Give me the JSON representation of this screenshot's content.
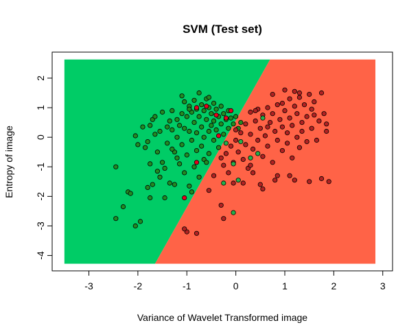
{
  "chart_data": {
    "type": "scatter",
    "title": "SVM (Test set)",
    "xlabel": "Variance of Wavelet Transformed image",
    "ylabel": "Entropy of image",
    "xlim": [
      -3.75,
      3.2
    ],
    "ylim": [
      -4.52,
      2.88
    ],
    "xticks": [
      "-3",
      "-2",
      "-1",
      "0",
      "1",
      "2",
      "3"
    ],
    "yticks": [
      "-4",
      "-3",
      "-2",
      "-1",
      "0",
      "1",
      "2"
    ],
    "grid": false,
    "legend": "none",
    "decision_regions": {
      "x_range": [
        -3.5,
        2.85
      ],
      "y_range": [
        -4.28,
        2.63
      ],
      "boundary": [
        [
          -1.65,
          -4.28
        ],
        [
          0.7,
          2.63
        ]
      ],
      "left_region_color": "#00CC66",
      "right_region_color": "#FF6347"
    },
    "point_colors": {
      "class_0": "#228B22",
      "class_1": "#B22222",
      "misclassified_class_0": "#22B14C",
      "misclassified_class_1": "#E8001C"
    },
    "series": [
      {
        "color": "#228B22",
        "points": [
          [
            -2.45,
            -1.0
          ],
          [
            -2.45,
            -2.75
          ],
          [
            -2.3,
            -2.35
          ],
          [
            -2.2,
            -1.85
          ],
          [
            -2.15,
            -1.9
          ],
          [
            -2.05,
            -3.0
          ],
          [
            -1.95,
            -2.85
          ],
          [
            -2.05,
            0.05
          ],
          [
            -1.9,
            0.35
          ],
          [
            -1.85,
            -0.35
          ],
          [
            -1.8,
            -0.15
          ],
          [
            -1.8,
            -1.7
          ],
          [
            -1.75,
            -2.05
          ],
          [
            -1.7,
            -1.6
          ],
          [
            -1.75,
            0.4
          ],
          [
            -1.7,
            0.6
          ],
          [
            -1.65,
            0.1
          ],
          [
            -1.6,
            -0.5
          ],
          [
            -1.6,
            -1.15
          ],
          [
            -1.55,
            0.2
          ],
          [
            -1.5,
            0.85
          ],
          [
            -1.5,
            -0.85
          ],
          [
            -1.45,
            -1.05
          ],
          [
            -1.45,
            -2.05
          ],
          [
            -1.4,
            0.35
          ],
          [
            -1.4,
            -0.2
          ],
          [
            -1.35,
            0.55
          ],
          [
            -1.35,
            -1.55
          ],
          [
            -1.3,
            0.9
          ],
          [
            -1.3,
            0.25
          ],
          [
            -1.25,
            -0.5
          ],
          [
            -1.25,
            -1.6
          ],
          [
            -1.2,
            0.6
          ],
          [
            -1.2,
            0.0
          ],
          [
            -1.15,
            -0.9
          ],
          [
            -1.15,
            0.4
          ],
          [
            -1.1,
            0.8
          ],
          [
            -1.1,
            -0.25
          ],
          [
            -1.05,
            1.2
          ],
          [
            -1.05,
            0.3
          ],
          [
            -1.05,
            -1.2
          ],
          [
            -1.0,
            0.7
          ],
          [
            -1.0,
            -0.6
          ],
          [
            -0.95,
            1.05
          ],
          [
            -0.95,
            0.2
          ],
          [
            -0.95,
            -1.65
          ],
          [
            -0.9,
            0.85
          ],
          [
            -0.9,
            -0.1
          ],
          [
            -0.85,
            1.25
          ],
          [
            -0.85,
            0.5
          ],
          [
            -0.85,
            -1.0
          ],
          [
            -0.8,
            0.95
          ],
          [
            -0.8,
            0.15
          ],
          [
            -0.8,
            -0.45
          ],
          [
            -0.75,
            1.5
          ],
          [
            -0.75,
            0.7
          ],
          [
            -0.75,
            -1.35
          ],
          [
            -0.7,
            1.1
          ],
          [
            -0.7,
            0.35
          ],
          [
            -0.7,
            -0.3
          ],
          [
            -0.65,
            0.9
          ],
          [
            -0.65,
            0.0
          ],
          [
            -0.65,
            -0.75
          ],
          [
            -0.6,
            1.3
          ],
          [
            -0.6,
            0.6
          ],
          [
            -0.55,
            1.0
          ],
          [
            -0.55,
            0.2
          ],
          [
            -0.55,
            -0.55
          ],
          [
            -0.5,
            0.8
          ],
          [
            -0.5,
            0.4
          ],
          [
            -0.45,
            1.15
          ],
          [
            -0.45,
            0.55
          ],
          [
            -0.45,
            -0.1
          ],
          [
            -0.4,
            0.95
          ],
          [
            -0.4,
            0.25
          ],
          [
            -0.35,
            0.7
          ],
          [
            -0.35,
            -0.35
          ],
          [
            -0.3,
            1.05
          ],
          [
            -0.3,
            0.45
          ],
          [
            -0.25,
            0.8
          ],
          [
            -0.25,
            0.1
          ],
          [
            -0.2,
            0.6
          ],
          [
            -0.15,
            0.9
          ],
          [
            -0.15,
            0.3
          ],
          [
            -0.1,
            0.65
          ],
          [
            -0.05,
            0.45
          ],
          [
            0.0,
            0.7
          ],
          [
            0.05,
            0.3
          ],
          [
            0.1,
            0.5
          ],
          [
            -1.2,
            -0.7
          ],
          [
            -1.55,
            -1.35
          ],
          [
            -1.75,
            -0.9
          ],
          [
            -2.0,
            -0.25
          ],
          [
            -0.9,
            -1.85
          ],
          [
            -0.6,
            -0.85
          ],
          [
            -1.3,
            -0.4
          ],
          [
            -1.65,
            0.7
          ],
          [
            -0.95,
            0.95
          ],
          [
            -0.55,
            1.35
          ],
          [
            -1.1,
            1.4
          ]
        ]
      },
      {
        "color": "#B22222",
        "points": [
          [
            -1.0,
            -3.2
          ],
          [
            -1.05,
            -3.1
          ],
          [
            -0.8,
            -3.25
          ],
          [
            -0.55,
            -1.8
          ],
          [
            -0.45,
            -1.3
          ],
          [
            -0.3,
            -2.3
          ],
          [
            -0.25,
            -2.75
          ],
          [
            -0.3,
            -0.7
          ],
          [
            -0.25,
            -0.95
          ],
          [
            -0.2,
            -0.55
          ],
          [
            -0.15,
            -1.2
          ],
          [
            -0.1,
            -0.3
          ],
          [
            -0.05,
            -0.85
          ],
          [
            0.0,
            -0.1
          ],
          [
            0.05,
            -0.5
          ],
          [
            0.1,
            0.15
          ],
          [
            0.15,
            -0.75
          ],
          [
            0.2,
            -0.25
          ],
          [
            0.2,
            0.45
          ],
          [
            0.25,
            -1.05
          ],
          [
            0.3,
            0.1
          ],
          [
            0.3,
            0.85
          ],
          [
            0.35,
            -0.4
          ],
          [
            0.4,
            0.55
          ],
          [
            0.45,
            -0.1
          ],
          [
            0.45,
            0.95
          ],
          [
            0.5,
            0.3
          ],
          [
            0.55,
            -0.65
          ],
          [
            0.55,
            0.75
          ],
          [
            0.6,
            0.05
          ],
          [
            0.65,
            1.0
          ],
          [
            0.65,
            -0.3
          ],
          [
            0.7,
            0.5
          ],
          [
            0.75,
            -0.85
          ],
          [
            0.75,
            0.8
          ],
          [
            0.8,
            0.2
          ],
          [
            0.85,
            -0.1
          ],
          [
            0.85,
            1.1
          ],
          [
            0.9,
            0.6
          ],
          [
            0.95,
            -0.45
          ],
          [
            0.95,
            0.35
          ],
          [
            1.0,
            1.6
          ],
          [
            1.0,
            0.9
          ],
          [
            1.05,
            -0.2
          ],
          [
            1.05,
            0.15
          ],
          [
            1.1,
            1.3
          ],
          [
            1.1,
            0.65
          ],
          [
            1.15,
            -0.7
          ],
          [
            1.15,
            0.4
          ],
          [
            1.2,
            1.05
          ],
          [
            1.2,
            1.55
          ],
          [
            1.25,
            0.0
          ],
          [
            1.25,
            0.8
          ],
          [
            1.3,
            -0.35
          ],
          [
            1.3,
            1.35
          ],
          [
            1.35,
            0.5
          ],
          [
            1.35,
            0.2
          ],
          [
            1.4,
            1.1
          ],
          [
            1.45,
            -0.15
          ],
          [
            1.45,
            0.7
          ],
          [
            1.5,
            1.45
          ],
          [
            1.55,
            0.3
          ],
          [
            1.55,
            0.95
          ],
          [
            1.6,
            1.2
          ],
          [
            1.65,
            -0.1
          ],
          [
            1.7,
            0.55
          ],
          [
            1.75,
            1.5
          ],
          [
            1.8,
            0.8
          ],
          [
            1.85,
            0.2
          ],
          [
            1.85,
            0.45
          ],
          [
            1.9,
            -1.5
          ],
          [
            1.75,
            -1.4
          ],
          [
            1.5,
            -1.5
          ],
          [
            1.2,
            -1.45
          ],
          [
            1.1,
            -1.3
          ],
          [
            0.85,
            -1.3
          ],
          [
            0.8,
            -1.45
          ],
          [
            0.5,
            -1.6
          ],
          [
            0.35,
            -1.2
          ],
          [
            0.15,
            -1.55
          ],
          [
            0.55,
            -1.75
          ],
          [
            0.3,
            -0.95
          ],
          [
            -0.05,
            -1.55
          ],
          [
            0.65,
            0.35
          ],
          [
            0.0,
            0.25
          ],
          [
            0.4,
            0.9
          ],
          [
            0.95,
            1.15
          ],
          [
            1.6,
            0.75
          ],
          [
            0.75,
            1.45
          ],
          [
            1.3,
            1.5
          ]
        ]
      },
      {
        "color": "#22B14C",
        "points": [
          [
            -0.05,
            -2.55
          ],
          [
            0.05,
            -1.45
          ],
          [
            -0.25,
            -1.55
          ],
          [
            0.3,
            -0.7
          ],
          [
            0.55,
            0.65
          ],
          [
            0.1,
            -0.15
          ],
          [
            -0.2,
            -0.2
          ],
          [
            0.45,
            -0.55
          ],
          [
            -0.05,
            -0.9
          ]
        ]
      },
      {
        "color": "#E8001C",
        "points": [
          [
            -1.05,
            -2.05
          ],
          [
            -0.8,
            -0.85
          ],
          [
            -0.35,
            0.05
          ],
          [
            -0.6,
            1.05
          ],
          [
            -0.8,
            1.0
          ],
          [
            -0.2,
            0.65
          ],
          [
            -0.4,
            0.75
          ],
          [
            -0.1,
            0.9
          ]
        ]
      }
    ]
  }
}
